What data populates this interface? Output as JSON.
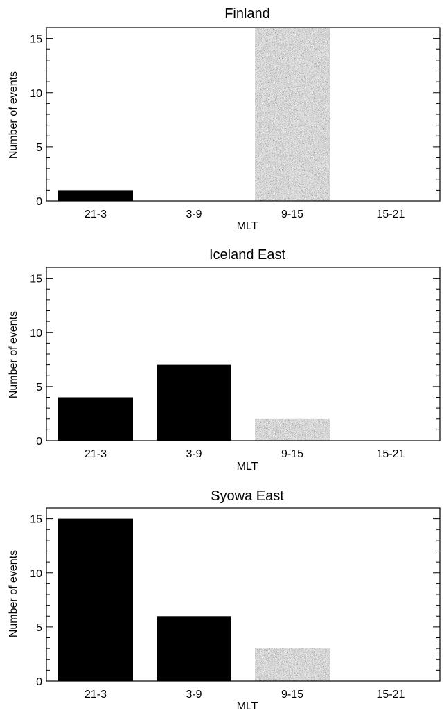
{
  "chart_data": [
    {
      "type": "bar",
      "title": "Finland",
      "xlabel": "MLT",
      "ylabel": "Number of events",
      "categories": [
        "21-3",
        "3-9",
        "9-15",
        "15-21"
      ],
      "values": [
        1,
        0,
        16,
        0
      ],
      "bar_styles": [
        "solid",
        "solid",
        "stippled",
        "stippled"
      ],
      "ylim": [
        0,
        16
      ],
      "yticks": [
        0,
        5,
        10,
        15
      ],
      "grid": false,
      "legend": "none"
    },
    {
      "type": "bar",
      "title": "Iceland East",
      "xlabel": "MLT",
      "ylabel": "Number of events",
      "categories": [
        "21-3",
        "3-9",
        "9-15",
        "15-21"
      ],
      "values": [
        4,
        7,
        2,
        0
      ],
      "bar_styles": [
        "solid",
        "solid",
        "stippled",
        "stippled"
      ],
      "ylim": [
        0,
        16
      ],
      "yticks": [
        0,
        5,
        10,
        15
      ],
      "grid": false,
      "legend": "none"
    },
    {
      "type": "bar",
      "title": "Syowa East",
      "xlabel": "MLT",
      "ylabel": "Number of events",
      "categories": [
        "21-3",
        "3-9",
        "9-15",
        "15-21"
      ],
      "values": [
        15,
        6,
        3,
        0
      ],
      "bar_styles": [
        "solid",
        "solid",
        "stippled",
        "stippled"
      ],
      "ylim": [
        0,
        16
      ],
      "yticks": [
        0,
        5,
        10,
        15
      ],
      "grid": false,
      "legend": "none"
    }
  ],
  "colors": {
    "solid_bar": "#000000",
    "stippled_bar": "#8a8a8a",
    "axis": "#000000",
    "background": "#ffffff"
  }
}
